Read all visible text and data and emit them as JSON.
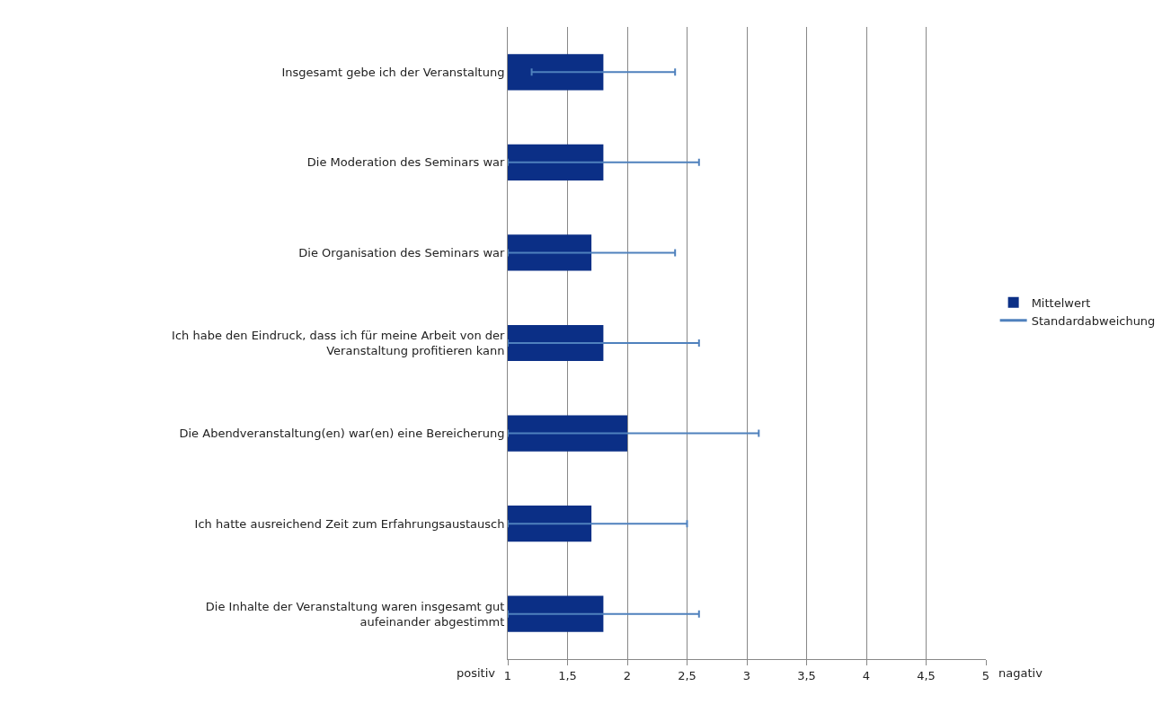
{
  "chart_data": {
    "type": "bar",
    "orientation": "horizontal",
    "categories": [
      "Insgesamt gebe ich der Veranstaltung",
      "Die Moderation des Seminars war",
      "Die Organisation des Seminars war",
      "Ich habe den Eindruck, dass ich für meine Arbeit von der Veranstaltung profitieren kann",
      "Die Abendveranstaltung(en) war(en) eine Bereicherung",
      "Ich hatte ausreichend Zeit zum Erfahrungsaustausch",
      "Die Inhalte der Veranstaltung waren insgesamt gut aufeinander abgestimmt"
    ],
    "series": [
      {
        "name": "Mittelwert",
        "color": "#0b2f86",
        "values": [
          1.8,
          1.8,
          1.7,
          1.8,
          2.0,
          1.7,
          1.8
        ],
        "errors": [
          [
            1.2,
            2.4
          ],
          [
            1.0,
            2.6
          ],
          [
            1.0,
            2.4
          ],
          [
            1.0,
            2.6
          ],
          [
            1.0,
            3.1
          ],
          [
            1.0,
            2.5
          ],
          [
            1.0,
            2.6
          ]
        ]
      },
      {
        "name": "Standardabweichung",
        "type": "line",
        "color": "#4f81bd",
        "values": [
          null,
          null,
          null,
          null,
          null,
          null,
          null
        ]
      }
    ],
    "xlim": [
      1,
      5
    ],
    "xticks": [
      1,
      {
        "value": 1.5,
        "label": "1,5"
      },
      2,
      {
        "value": 2.5,
        "label": "2,5"
      },
      3,
      {
        "value": 3.5,
        "label": "3,5"
      },
      4,
      {
        "value": 4.5,
        "label": "4,5"
      },
      5
    ],
    "annotations": [
      "positiv",
      "nagativ"
    ],
    "grid": "x",
    "legend": "right"
  }
}
